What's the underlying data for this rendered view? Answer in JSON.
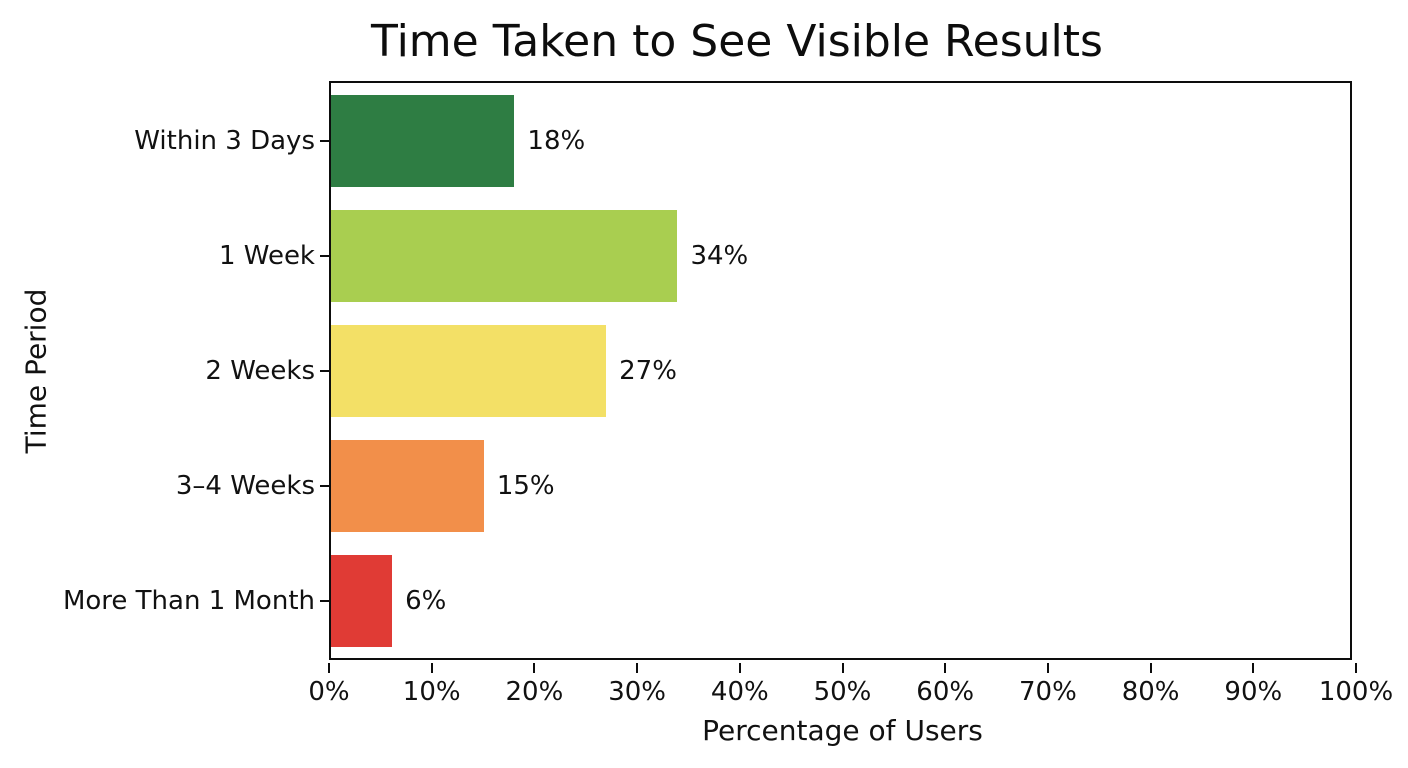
{
  "chart_data": {
    "type": "bar",
    "orientation": "horizontal",
    "title": "Time Taken to See Visible Results",
    "xlabel": "Percentage of Users",
    "ylabel": "Time Period",
    "categories": [
      "Within 3 Days",
      "1 Week",
      "2 Weeks",
      "3–4 Weeks",
      "More Than 1 Month"
    ],
    "values": [
      18,
      34,
      27,
      15,
      6
    ],
    "value_labels": [
      "18%",
      "34%",
      "27%",
      "15%",
      "6%"
    ],
    "bar_colors": [
      "#2e7d43",
      "#a9ce50",
      "#f3e066",
      "#f28f4a",
      "#e03b35"
    ],
    "xlim": [
      0,
      100
    ],
    "x_tick_values": [
      0,
      10,
      20,
      30,
      40,
      50,
      60,
      70,
      80,
      90,
      100
    ],
    "x_tick_labels": [
      "0%",
      "10%",
      "20%",
      "30%",
      "40%",
      "50%",
      "60%",
      "70%",
      "80%",
      "90%",
      "100%"
    ],
    "grid": false,
    "legend": "none",
    "axis_color": "#0d0d0d",
    "background_color": "#ffffff"
  }
}
